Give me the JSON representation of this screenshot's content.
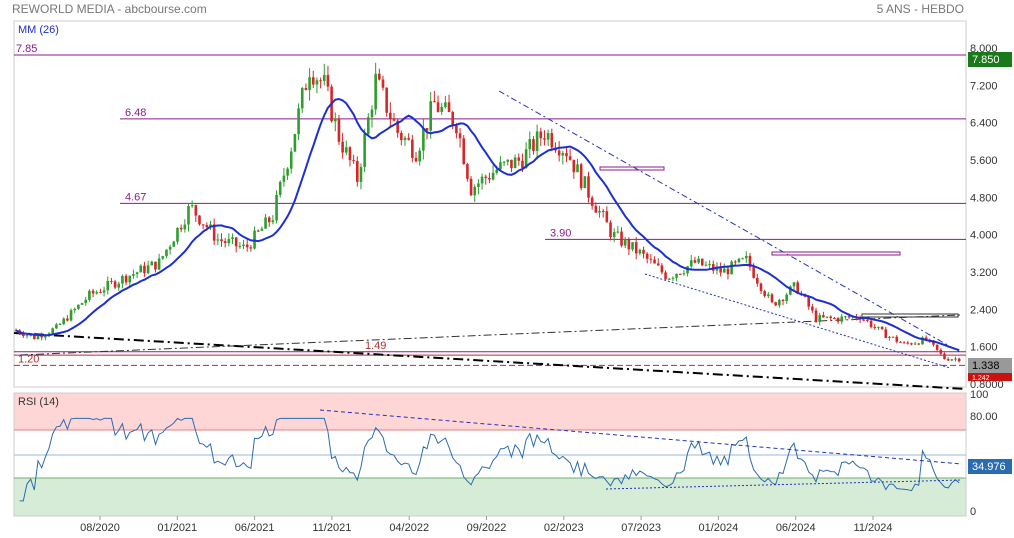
{
  "header": {
    "left": "REWORLD MEDIA - abcbourse.com",
    "right": "5 ANS - HEBDO"
  },
  "chart_data": [
    {
      "type": "candlestick",
      "indicator_label": "MM (26)",
      "x_ticks": [
        "08/2020",
        "01/2021",
        "06/2021",
        "11/2021",
        "04/2022",
        "09/2022",
        "02/2023",
        "07/2023",
        "01/2024",
        "06/2024",
        "11/2024"
      ],
      "y_ticks": [
        "8.000",
        "7.200",
        "6.400",
        "5.600",
        "4.800",
        "4.000",
        "3.200",
        "2.400",
        "1.600",
        "0.8000"
      ],
      "y_range": [
        0.8,
        8.0
      ],
      "last_price": "1.338",
      "max_price": "7.850",
      "min_price": "1.242",
      "levels": [
        {
          "label": "7.85",
          "value": 7.85
        },
        {
          "label": "6.48",
          "value": 6.48
        },
        {
          "label": "4.67",
          "value": 4.67
        },
        {
          "label": "3.90",
          "value": 3.9
        },
        {
          "label": "1.49",
          "value": 1.49
        },
        {
          "label": "1.20",
          "value": 1.2
        }
      ],
      "colors": {
        "up": "#2e9e2e",
        "down": "#d62728",
        "ma": "#1c2fd0",
        "level": "#8b1a8b",
        "price_box": "#999999",
        "max_box": "#1a7a1a",
        "min_box": "#cc1111"
      }
    },
    {
      "type": "line",
      "indicator_label": "RSI (14)",
      "y_ticks": [
        "100",
        "80.00",
        "0"
      ],
      "y_range": [
        0,
        100
      ],
      "last_value": "34.976",
      "overbought": 70,
      "oversold": 30,
      "colors": {
        "line": "#2b6cb0",
        "overbought_zone": "#ffd6d6",
        "oversold_zone": "#d6ecd6"
      }
    }
  ]
}
